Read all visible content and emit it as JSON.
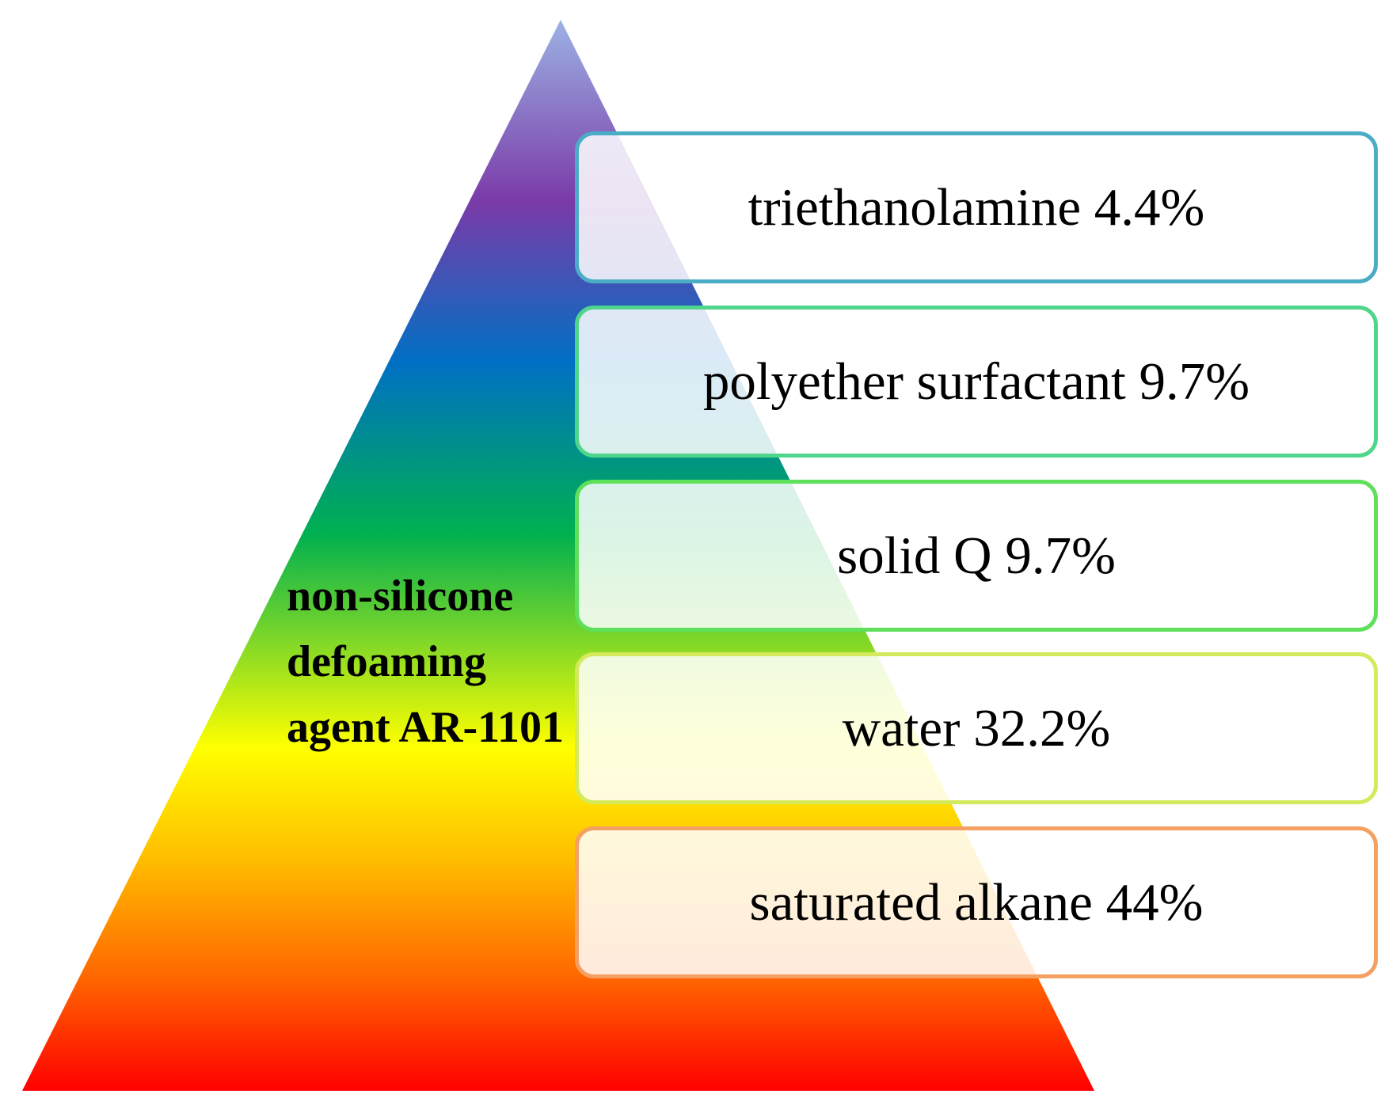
{
  "label": "non-silicone defoaming agent AR-1101",
  "items": [
    {
      "text": "triethanolamine 4.4%",
      "color": "#4bacc6"
    },
    {
      "text": "polyether surfactant 9.7%",
      "color": "#4fd68c"
    },
    {
      "text": "solid Q 9.7%",
      "color": "#5ee05a"
    },
    {
      "text": "water 32.2%",
      "color": "#d4ea5c"
    },
    {
      "text": "saturated alkane 44%",
      "color": "#f4a062"
    }
  ]
}
